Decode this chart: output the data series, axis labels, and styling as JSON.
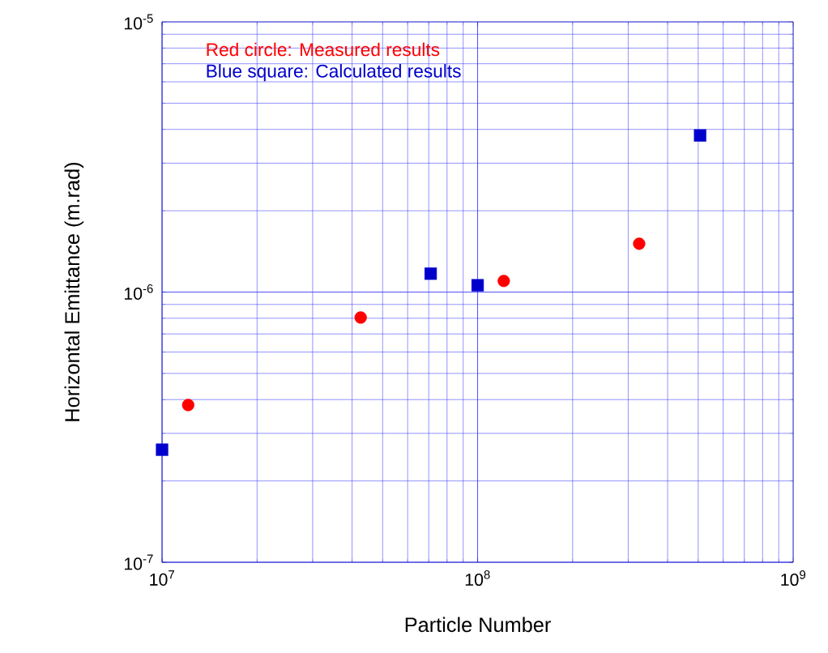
{
  "chart_data": {
    "type": "scatter",
    "xlabel": "Particle Number",
    "ylabel": "Horizontal Emittance (m.rad)",
    "log": "xy",
    "grid": true,
    "legend": "top left",
    "xlim": [
      10000000.0,
      1000000000.0
    ],
    "ylim": [
      1e-07,
      1e-05
    ],
    "xticks": [
      {
        "value": 10000000.0,
        "label": "10$^{7}$"
      },
      {
        "value": 100000000.0,
        "label": "10$^{8}$"
      },
      {
        "value": 1000000000.0,
        "label": "10$^{9}$"
      }
    ],
    "yticks": [
      {
        "value": 1e-07,
        "label": "10$^{-7}$"
      },
      {
        "value": 1e-06,
        "label": "10$^{-6}$"
      },
      {
        "value": 1e-05,
        "label": "10$^{-5}$"
      }
    ],
    "series": [
      {
        "name": "Red circle: Measured results",
        "color": "#ff0000",
        "marker": "circle",
        "x": [
          12100000.0,
          42600000.0,
          121000000.0,
          325000000.0
        ],
        "values": [
          3.82e-07,
          8.05e-07,
          1.1e-06,
          1.51e-06
        ]
      },
      {
        "name": "Blue square: Calculated results",
        "color": "#0000cc",
        "marker": "square",
        "x": [
          10000000.0,
          71000000.0,
          100000000.0,
          507000000.0
        ],
        "values": [
          2.61e-07,
          1.17e-06,
          1.06e-06,
          3.8e-06
        ]
      }
    ]
  }
}
